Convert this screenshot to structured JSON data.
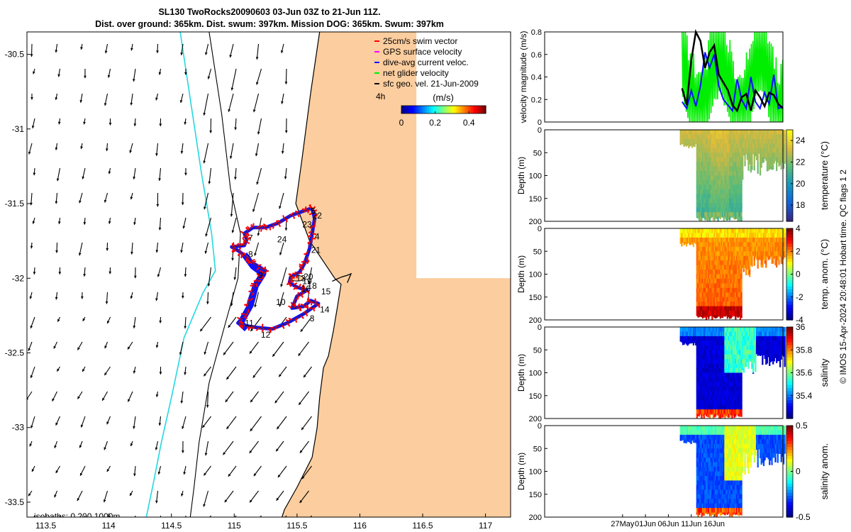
{
  "header": {
    "title_line1": "SL130 TwoRocks20090603 03-Jun 03Z to 21-Jun 11Z.",
    "title_line2": "Dist. over ground: 365km. Dist. swum: 397km. Mission DOG: 365km. Swum: 397km"
  },
  "credit": "© IMOS 15-Apr-2024 20:48:01 Hobart time. QC flags 1  2",
  "colors": {
    "land": "#fccd9e",
    "isobath_200": "#24d8e0",
    "track": "#1010ff",
    "swim": "#ff0000",
    "gps": "#ff00ff",
    "net": "#00ee00",
    "geo": "#000000"
  },
  "chart_data": [
    {
      "type": "map",
      "xlim": [
        113.35,
        117.2
      ],
      "ylim": [
        -33.6,
        -30.35
      ],
      "x_ticks": [
        113.5,
        114,
        114.5,
        115,
        115.5,
        116,
        116.5,
        117
      ],
      "x_tick_labels": [
        "113.5",
        "114",
        "114.5",
        "115",
        "115.5",
        "116",
        "116.5",
        "117"
      ],
      "y_ticks": [
        -30.5,
        -31,
        -31.5,
        -32,
        -32.5,
        -33,
        -33.5
      ],
      "y_tick_labels": [
        "-30.5",
        "-31",
        "-31.5",
        "-32",
        "-32.5",
        "-33",
        "-33.5"
      ],
      "legend": {
        "placement": "top-right",
        "items": [
          {
            "label": "25cm/s swim vector",
            "color": "#ff0000"
          },
          {
            "label": "GPS surface velocity",
            "color": "#ff00ff"
          },
          {
            "label": "dive-avg current veloc.",
            "color": "#1010ff"
          },
          {
            "label": "net glider velocity",
            "color": "#00ee00"
          },
          {
            "label": "sfc geo. vel. 21-Jun-2009",
            "color": "#000000"
          }
        ]
      },
      "time_interval_label": "4h",
      "colorbar": {
        "label": "(m/s)",
        "ticks": [
          0,
          0.2,
          0.4
        ],
        "tick_labels": [
          "0",
          "0.2",
          "0.4"
        ],
        "range": [
          0,
          0.5
        ]
      },
      "isobaths_label": "isobaths: 0    200   1000m",
      "day_labels": [
        {
          "text": "5",
          "lon": 115.63,
          "lat": -31.55
        },
        {
          "text": "22",
          "lon": 115.66,
          "lat": -31.58
        },
        {
          "text": "23",
          "lon": 115.58,
          "lat": -31.64
        },
        {
          "text": "4",
          "lon": 115.66,
          "lat": -31.72
        },
        {
          "text": "24",
          "lon": 115.38,
          "lat": -31.74
        },
        {
          "text": "7",
          "lon": 115.13,
          "lat": -31.73
        },
        {
          "text": "21",
          "lon": 115.65,
          "lat": -31.81
        },
        {
          "text": "8",
          "lon": 115.13,
          "lat": -31.84
        },
        {
          "text": "9",
          "lon": 115.21,
          "lat": -31.98
        },
        {
          "text": "20",
          "lon": 115.59,
          "lat": -31.99
        },
        {
          "text": "13",
          "lon": 115.53,
          "lat": -32.0
        },
        {
          "text": "19",
          "lon": 115.58,
          "lat": -32.02
        },
        {
          "text": "18",
          "lon": 115.62,
          "lat": -32.05
        },
        {
          "text": "16",
          "lon": 115.57,
          "lat": -32.07
        },
        {
          "text": "15",
          "lon": 115.73,
          "lat": -32.09
        },
        {
          "text": "10",
          "lon": 115.37,
          "lat": -32.16
        },
        {
          "text": "14",
          "lon": 115.72,
          "lat": -32.21
        },
        {
          "text": "3",
          "lon": 115.62,
          "lat": -32.27
        },
        {
          "text": "11",
          "lon": 115.12,
          "lat": -32.3
        },
        {
          "text": "12",
          "lon": 115.25,
          "lat": -32.38
        }
      ],
      "track": [
        [
          115.62,
          -31.53
        ],
        [
          115.55,
          -31.55
        ],
        [
          115.45,
          -31.58
        ],
        [
          115.35,
          -31.63
        ],
        [
          115.25,
          -31.66
        ],
        [
          115.15,
          -31.66
        ],
        [
          115.08,
          -31.7
        ],
        [
          115.1,
          -31.74
        ],
        [
          115.08,
          -31.78
        ],
        [
          114.98,
          -31.79
        ],
        [
          115.04,
          -31.82
        ],
        [
          115.1,
          -31.86
        ],
        [
          115.15,
          -31.9
        ],
        [
          115.25,
          -31.95
        ],
        [
          115.2,
          -31.99
        ],
        [
          115.16,
          -32.05
        ],
        [
          115.12,
          -32.15
        ],
        [
          115.1,
          -32.23
        ],
        [
          115.03,
          -32.3
        ],
        [
          115.1,
          -32.32
        ],
        [
          115.18,
          -32.33
        ],
        [
          115.3,
          -32.34
        ],
        [
          115.42,
          -32.3
        ],
        [
          115.55,
          -32.24
        ],
        [
          115.67,
          -32.17
        ],
        [
          115.61,
          -32.15
        ],
        [
          115.55,
          -32.19
        ],
        [
          115.46,
          -32.2
        ],
        [
          115.5,
          -32.12
        ],
        [
          115.58,
          -32.08
        ],
        [
          115.5,
          -32.06
        ],
        [
          115.44,
          -32.03
        ],
        [
          115.45,
          -31.99
        ],
        [
          115.52,
          -31.96
        ],
        [
          115.56,
          -31.9
        ],
        [
          115.6,
          -31.8
        ],
        [
          115.62,
          -31.7
        ],
        [
          115.64,
          -31.6
        ],
        [
          115.62,
          -31.53
        ]
      ],
      "coastline": [
        [
          115.68,
          -30.35
        ],
        [
          115.61,
          -30.75
        ],
        [
          115.54,
          -31.2
        ],
        [
          115.49,
          -31.5
        ],
        [
          115.6,
          -31.75
        ],
        [
          115.72,
          -31.9
        ],
        [
          115.8,
          -32.0
        ],
        [
          115.85,
          -32.04
        ],
        [
          115.82,
          -32.2
        ],
        [
          115.79,
          -32.35
        ],
        [
          115.75,
          -32.52
        ],
        [
          115.71,
          -32.6
        ],
        [
          115.68,
          -32.8
        ],
        [
          115.66,
          -33.0
        ],
        [
          115.62,
          -33.2
        ],
        [
          115.5,
          -33.4
        ],
        [
          115.4,
          -33.55
        ],
        [
          115.38,
          -33.6
        ]
      ],
      "isobath_200": [
        [
          114.57,
          -30.35
        ],
        [
          114.65,
          -30.8
        ],
        [
          114.74,
          -31.3
        ],
        [
          114.82,
          -31.7
        ],
        [
          114.85,
          -31.95
        ],
        [
          114.75,
          -32.1
        ],
        [
          114.6,
          -32.4
        ],
        [
          114.5,
          -32.8
        ],
        [
          114.42,
          -33.1
        ],
        [
          114.35,
          -33.4
        ],
        [
          114.3,
          -33.6
        ]
      ],
      "isobath_1000": [
        [
          114.8,
          -30.35
        ],
        [
          114.9,
          -30.9
        ],
        [
          114.97,
          -31.4
        ],
        [
          115.05,
          -31.7
        ],
        [
          115.03,
          -32.0
        ],
        [
          114.93,
          -32.3
        ],
        [
          114.8,
          -32.7
        ],
        [
          114.72,
          -33.1
        ],
        [
          114.68,
          -33.4
        ],
        [
          114.65,
          -33.6
        ]
      ]
    },
    {
      "type": "line",
      "ylabel": "velocity magnitude (m/s)",
      "ylim": [
        0,
        0.8
      ],
      "y_ticks": [
        0,
        0.2,
        0.4,
        0.6,
        0.8
      ],
      "y_tick_labels": [
        "0",
        "0.2",
        "0.4",
        "0.6",
        "0.8"
      ],
      "x_day_range": [
        0,
        52
      ],
      "series": [
        {
          "color": "#1010ff",
          "x": [
            30,
            31,
            32,
            33,
            34,
            35,
            36,
            37,
            38,
            39,
            40,
            41,
            42,
            43,
            44,
            45,
            46,
            47,
            48,
            49,
            50,
            51,
            52
          ],
          "values": [
            0.18,
            0.12,
            0.28,
            0.14,
            0.32,
            0.62,
            0.48,
            0.6,
            0.32,
            0.2,
            0.15,
            0.1,
            0.38,
            0.2,
            0.12,
            0.4,
            0.18,
            0.12,
            0.26,
            0.16,
            0.42,
            0.12,
            0.14
          ]
        },
        {
          "color": "#000000",
          "x": [
            30,
            31,
            32,
            33,
            34,
            35,
            36,
            37,
            38,
            39,
            40,
            41,
            42,
            43,
            44,
            45,
            46,
            47,
            48,
            49,
            50,
            51,
            52
          ],
          "values": [
            0.3,
            0.15,
            0.55,
            0.8,
            0.72,
            0.48,
            0.62,
            0.68,
            0.42,
            0.35,
            0.28,
            0.15,
            0.1,
            0.22,
            0.25,
            0.1,
            0.28,
            0.22,
            0.14,
            0.26,
            0.24,
            0.16,
            0.12
          ]
        }
      ]
    },
    {
      "type": "heatmap",
      "variable": "temperature",
      "ylabel": "Depth (m)",
      "cbar_label": "temperature (°C)",
      "ylim": [
        0,
        200
      ],
      "y_ticks": [
        0,
        50,
        100,
        150,
        200
      ],
      "y_tick_labels": [
        "0",
        "50",
        "100",
        "150",
        "200"
      ],
      "cbar_ticks": [
        24,
        22,
        20,
        18
      ],
      "cbar_tick_labels": [
        "24",
        "22",
        "20",
        "18"
      ],
      "cbar_range": [
        16.5,
        25
      ]
    },
    {
      "type": "heatmap",
      "variable": "temperature anomaly",
      "ylabel": "Depth (m)",
      "cbar_label": "temp. anom. (°C)",
      "ylim": [
        0,
        200
      ],
      "y_ticks": [
        0,
        50,
        100,
        150,
        200
      ],
      "y_tick_labels": [
        "0",
        "50",
        "100",
        "150",
        "200"
      ],
      "cbar_ticks": [
        4,
        2,
        0,
        -2,
        -4
      ],
      "cbar_tick_labels": [
        "4",
        "2",
        "0",
        "-2",
        "-4"
      ],
      "cbar_range": [
        -4,
        4
      ]
    },
    {
      "type": "heatmap",
      "variable": "salinity",
      "ylabel": "Depth (m)",
      "cbar_label": "salinity",
      "ylim": [
        0,
        200
      ],
      "y_ticks": [
        0,
        50,
        100,
        150,
        200
      ],
      "y_tick_labels": [
        "0",
        "50",
        "100",
        "150",
        "200"
      ],
      "cbar_ticks": [
        36,
        35.8,
        35.6,
        35.4
      ],
      "cbar_tick_labels": [
        "36",
        "35.8",
        "35.6",
        "35.4"
      ],
      "cbar_range": [
        35.2,
        36
      ]
    },
    {
      "type": "heatmap",
      "variable": "salinity anomaly",
      "ylabel": "Depth (m)",
      "cbar_label": "salinity anom.",
      "ylim": [
        0,
        200
      ],
      "y_ticks": [
        0,
        50,
        100,
        150,
        200
      ],
      "y_tick_labels": [
        "0",
        "50",
        "100",
        "150",
        "200"
      ],
      "cbar_ticks": [
        0.5,
        0,
        -0.5
      ],
      "cbar_tick_labels": [
        "0.5",
        "0",
        "-0.5"
      ],
      "cbar_range": [
        -0.5,
        0.5
      ],
      "x_ticks": [
        17,
        22,
        27,
        32,
        37
      ],
      "x_tick_labels": [
        "27May",
        "01Jun",
        "06Jun",
        "11Jun",
        "16Jun"
      ]
    }
  ]
}
